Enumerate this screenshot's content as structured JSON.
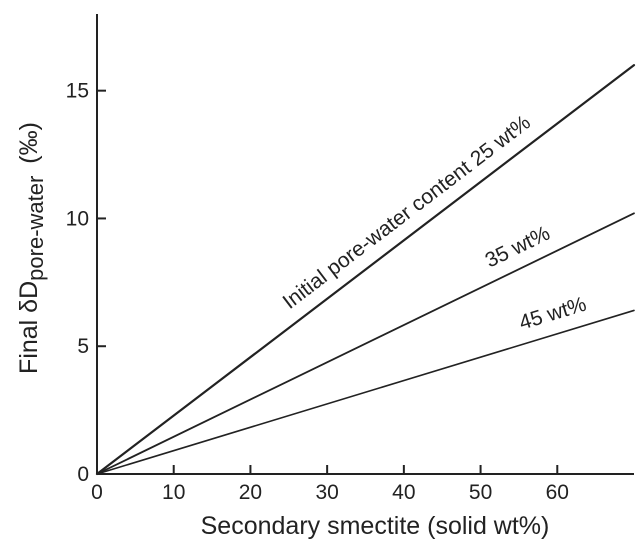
{
  "chart_data": {
    "type": "line",
    "xlabel": "Secondary smectite (solid wt%)",
    "ylabel": {
      "main": "Final δD",
      "subscript": "pore-water",
      "unit": "(‰)"
    },
    "xlim": [
      0,
      70
    ],
    "ylim": [
      0,
      18
    ],
    "xticks": [
      0,
      10,
      20,
      30,
      40,
      50,
      60
    ],
    "yticks": [
      0,
      5,
      10,
      15
    ],
    "grid": false,
    "legend": "none",
    "series": [
      {
        "label": "Initial pore-water content 25 wt%",
        "x": [
          0,
          70
        ],
        "y": [
          0,
          16.0
        ]
      },
      {
        "label": "35 wt%",
        "x": [
          0,
          70
        ],
        "y": [
          0,
          10.2
        ]
      },
      {
        "label": "45 wt%",
        "x": [
          0,
          70
        ],
        "y": [
          0,
          6.4
        ]
      }
    ]
  }
}
